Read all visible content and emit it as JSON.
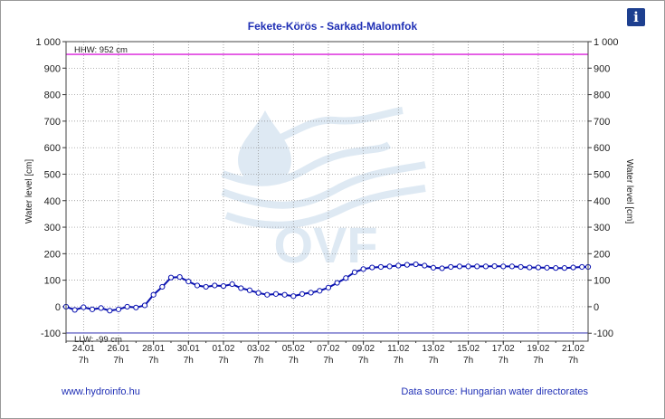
{
  "info_button": {
    "icon": "info-icon",
    "label": "i",
    "color": "#1d3f8f"
  },
  "footer": {
    "link": "www.hydroinfo.hu",
    "source": "Data source: Hungarian water directorates"
  },
  "watermark": {
    "text": "OVF"
  },
  "chart_data": {
    "type": "line",
    "title": "Fekete-Körös - Sarkad-Malomfok",
    "ylabel_left": "Water level [cm]",
    "ylabel_right": "Water level [cm]",
    "ylim": [
      -130,
      1000
    ],
    "yticks": [
      -100,
      0,
      100,
      200,
      300,
      400,
      500,
      600,
      700,
      800,
      900,
      1000
    ],
    "ytick_labels": [
      "-100",
      "0",
      "100",
      "200",
      "300",
      "400",
      "500",
      "600",
      "700",
      "800",
      "900",
      "1 000"
    ],
    "xlim": [
      0,
      29.85
    ],
    "xticks": [
      1,
      3,
      5,
      7,
      9,
      11,
      13,
      15,
      17,
      19,
      21,
      23,
      25,
      27,
      29
    ],
    "xtick_labels": [
      [
        "24.01",
        "7h"
      ],
      [
        "26.01",
        "7h"
      ],
      [
        "28.01",
        "7h"
      ],
      [
        "30.01",
        "7h"
      ],
      [
        "01.02",
        "7h"
      ],
      [
        "03.02",
        "7h"
      ],
      [
        "05.02",
        "7h"
      ],
      [
        "07.02",
        "7h"
      ],
      [
        "09.02",
        "7h"
      ],
      [
        "11.02",
        "7h"
      ],
      [
        "13.02",
        "7h"
      ],
      [
        "15.02",
        "7h"
      ],
      [
        "17.02",
        "7h"
      ],
      [
        "19.02",
        "7h"
      ],
      [
        "21.02",
        "7h"
      ]
    ],
    "grid": true,
    "reference_lines": [
      {
        "name": "HHW",
        "label": "HHW: 952 cm",
        "value": 952,
        "color": "#e040e0"
      },
      {
        "name": "LLW",
        "label": "LLW: -99 cm",
        "value": -99,
        "color": "#8080d0"
      }
    ],
    "series": [
      {
        "color": "#0a12b0",
        "x": [
          0,
          0.5,
          1,
          1.5,
          2,
          2.5,
          3,
          3.5,
          4,
          4.5,
          5,
          5.5,
          6,
          6.5,
          7,
          7.5,
          8,
          8.5,
          9,
          9.5,
          10,
          10.5,
          11,
          11.5,
          12,
          12.5,
          13,
          13.5,
          14,
          14.5,
          15,
          15.5,
          16,
          16.5,
          17,
          17.5,
          18,
          18.5,
          19,
          19.5,
          20,
          20.5,
          21,
          21.5,
          22,
          22.5,
          23,
          23.5,
          24,
          24.5,
          25,
          25.5,
          26,
          26.5,
          27,
          27.5,
          28,
          28.5,
          29,
          29.5,
          29.85
        ],
        "y": [
          0,
          -12,
          -2,
          -10,
          -5,
          -15,
          -10,
          0,
          -3,
          5,
          45,
          75,
          110,
          112,
          95,
          80,
          75,
          80,
          78,
          85,
          70,
          62,
          52,
          45,
          48,
          45,
          40,
          48,
          53,
          60,
          72,
          90,
          108,
          130,
          142,
          148,
          150,
          152,
          155,
          158,
          160,
          155,
          147,
          145,
          150,
          152,
          152,
          152,
          152,
          153,
          152,
          152,
          150,
          148,
          148,
          147,
          146,
          146,
          148,
          150,
          150
        ]
      }
    ]
  }
}
